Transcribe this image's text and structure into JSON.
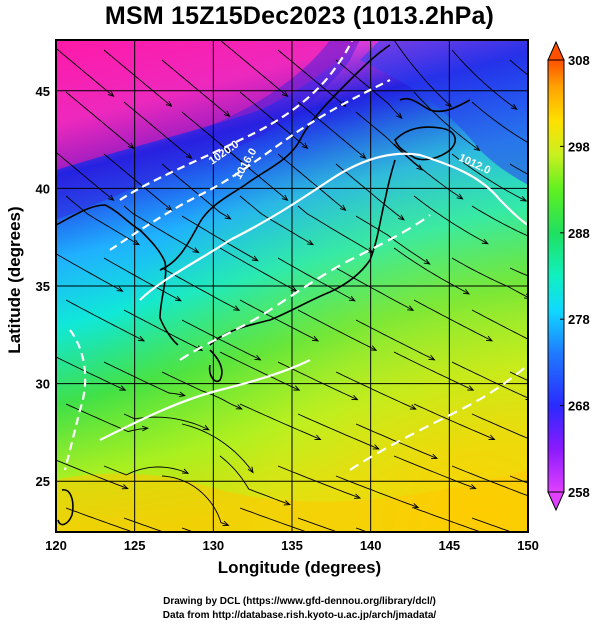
{
  "title": "MSM 15Z15Dec2023 (1013.2hPa)",
  "axes": {
    "xlabel": "Longitude (degrees)",
    "ylabel": "Latitude  (degrees)",
    "x_ticks": [
      "120",
      "125",
      "130",
      "135",
      "140",
      "145",
      "150"
    ],
    "y_ticks": [
      "25",
      "30",
      "35",
      "40",
      "45"
    ],
    "x_range": [
      120,
      150
    ],
    "y_range": [
      22.4,
      47.6
    ]
  },
  "colorbar": {
    "ticks": [
      "308",
      "298",
      "288",
      "278",
      "268",
      "258"
    ],
    "range": [
      258,
      308
    ],
    "colors": [
      "#e040ff",
      "#8a1aff",
      "#2a2aff",
      "#1f7aff",
      "#10d8ff",
      "#10f0c0",
      "#20e060",
      "#60f020",
      "#c8f020",
      "#ffe000",
      "#ffa000",
      "#ff5000"
    ]
  },
  "contours": {
    "labels": [
      "1020.0",
      "1016.0",
      "1012.0"
    ]
  },
  "credits": {
    "line1": "Drawing by DCL (https://www.gfd-dennou.org/library/dcl/)",
    "line2": "Data from http://database.rish.kyoto-u.ac.jp/arch/jmadata/"
  }
}
